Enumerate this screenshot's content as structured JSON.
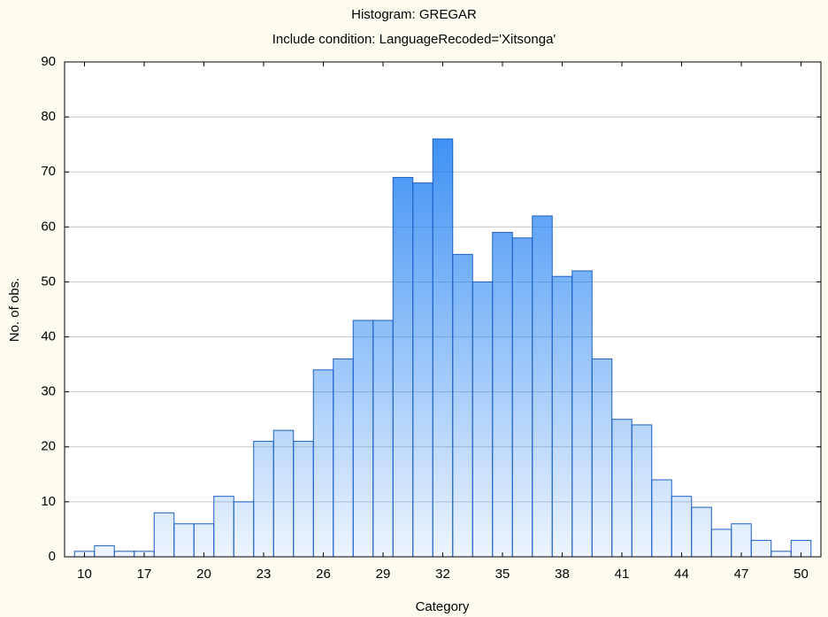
{
  "chart_data": {
    "type": "bar",
    "title": "Histogram: GREGAR",
    "subtitle": "Include condition: LanguageRecoded='Xitsonga'",
    "x_label": "Category",
    "y_label": "No. of obs.",
    "categories": [
      "10",
      null,
      null,
      "17",
      null,
      null,
      "20",
      null,
      null,
      "23",
      null,
      null,
      "26",
      null,
      null,
      "29",
      null,
      null,
      "32",
      null,
      null,
      "35",
      null,
      null,
      "38",
      null,
      null,
      "41",
      null,
      null,
      "44",
      null,
      null,
      "47",
      null,
      null,
      "50"
    ],
    "values": [
      1,
      2,
      1,
      1,
      8,
      6,
      6,
      11,
      10,
      21,
      23,
      21,
      34,
      36,
      43,
      43,
      69,
      68,
      76,
      55,
      50,
      59,
      58,
      62,
      51,
      52,
      36,
      25,
      24,
      14,
      11,
      9,
      5,
      6,
      3,
      1,
      3
    ],
    "color": "#1f80f2",
    "ylim": [
      0,
      90
    ],
    "yticks": [
      0,
      10,
      20,
      30,
      40,
      50,
      60,
      70,
      80,
      90
    ],
    "grid": true
  }
}
